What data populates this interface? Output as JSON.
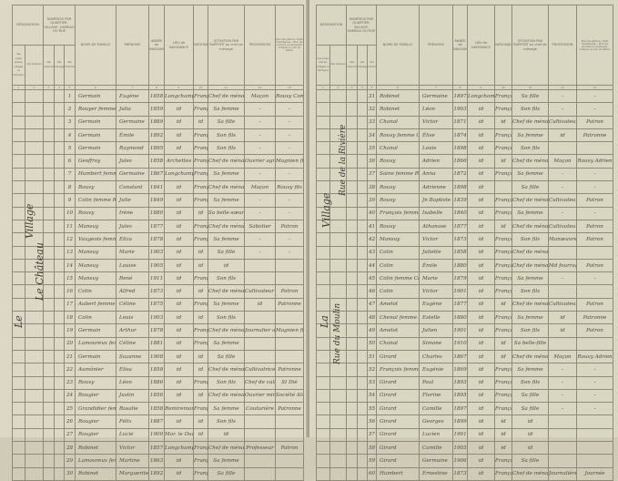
{
  "headers": {
    "designation": "DÉSIGNATION",
    "designation_sub1": "des voies, places, villages ou hameaux",
    "designation_sub2": "des maisons",
    "numeros": "NUMÉROS PAR QUARTIER, VILLAGE, HAMEAU OU RUE",
    "num_sub1": "des maisons",
    "num_sub2": "des ménages",
    "num_sub3": "des individus",
    "noms": "NOMS DE FAMILLE",
    "prenoms": "PRÉNOMS",
    "annee": "ANNÉE de NAISSANCE",
    "lieu": "LIEU de NAISSANCE",
    "nationalite": "NATIONALITÉ",
    "situation": "SITUATION PAR RAPPORT au chef de ménage",
    "profession": "PROFESSION",
    "patron": "Pour les patrons, chefs d'entreprise... Pour les ouvriers ou employés, indiquer le nom du patron"
  },
  "column_numbers": [
    "1",
    "2",
    "3",
    "4",
    "5",
    "6",
    "7",
    "8",
    "9",
    "10",
    "11",
    "12",
    "13"
  ],
  "margin_left": {
    "line1": "Village",
    "line2": "Le Château",
    "line3": "Le"
  },
  "margin_right": {
    "line1": "Village",
    "line2": "Rue de la Rivière",
    "line3": "Rue du Moulin",
    "line4": "La"
  },
  "left_rows": [
    [
      "1",
      "Germain",
      "Eugène",
      "1858",
      "Longchamp",
      "Français",
      "Chef de ménage",
      "Maçon",
      "Rouvy Const."
    ],
    [
      "2",
      "Rouyer femme Germain",
      "Julia",
      "1859",
      "id",
      "Française",
      "Sa femme",
      "-",
      "-"
    ],
    [
      "3",
      "Germain",
      "Germaine",
      "1889",
      "id",
      "id",
      "Sa fille",
      "-",
      "-"
    ],
    [
      "4",
      "Germain",
      "Émile",
      "1892",
      "id",
      "Français",
      "Son fils",
      "-",
      "-"
    ],
    [
      "5",
      "Germain",
      "Raymond",
      "1895",
      "id",
      "Français",
      "Son fils",
      "-",
      "-"
    ],
    [
      "6",
      "Geoffroy",
      "Jules",
      "1858",
      "Archettes",
      "Français",
      "Chef de ménage",
      "Ouvrier agricole",
      "Magnien fils"
    ],
    [
      "7",
      "Humbert femme Geoffroy",
      "Germaine",
      "1867",
      "Longchamp",
      "Française",
      "Sa femme",
      "-",
      "-"
    ],
    [
      "8",
      "Rouvy",
      "Constant",
      "1841",
      "id",
      "Français",
      "Chef de ménage",
      "Maçon",
      "Rouvy fils"
    ],
    [
      "9",
      "Colin femme Rouvy",
      "Julie",
      "1849",
      "id",
      "Française",
      "Sa femme",
      "-",
      "-"
    ],
    [
      "10",
      "Rouvy",
      "Irène",
      "1880",
      "id",
      "id",
      "Sa belle-sœur",
      "-",
      "-"
    ],
    [
      "11",
      "Mansuy",
      "Jules",
      "1877",
      "id",
      "Français",
      "Chef de ménage",
      "Sabotier",
      "Patron"
    ],
    [
      "12",
      "Vaugeois femme Mansuy",
      "Eliza",
      "1878",
      "id",
      "Française",
      "Sa femme",
      "-",
      "-"
    ],
    [
      "13",
      "Mansuy",
      "Marie",
      "1903",
      "id",
      "id",
      "Sa fille",
      "-",
      "-"
    ],
    [
      "14",
      "Mansuy",
      "Louise",
      "1905",
      "id",
      "id",
      "id",
      "",
      ""
    ],
    [
      "15",
      "Mansuy",
      "René",
      "1911",
      "id",
      "Français",
      "Son fils",
      "",
      ""
    ],
    [
      "16",
      "Colin",
      "Alfred",
      "1873",
      "id",
      "id",
      "Chef de ménage",
      "Cultivateur exploitant",
      "Patron"
    ],
    [
      "17",
      "Aubert femme Colin",
      "Céline",
      "1875",
      "id",
      "Française",
      "Sa femme",
      "id",
      "Patronne"
    ],
    [
      "18",
      "Colin",
      "Louis",
      "1903",
      "id",
      "id",
      "Son fils",
      "",
      ""
    ],
    [
      "19",
      "Germain",
      "Arthur",
      "1878",
      "id",
      "Français",
      "Chef de ménage",
      "Journalier agricole",
      "Magnien fils"
    ],
    [
      "20",
      "Lamoureux femme Germain",
      "Céline",
      "1881",
      "id",
      "Française",
      "Sa femme",
      "",
      ""
    ],
    [
      "21",
      "Germain",
      "Suzanne",
      "1908",
      "id",
      "id",
      "Sa fille",
      "",
      ""
    ],
    [
      "22",
      "Aumônier",
      "Elisa",
      "1858",
      "id",
      "id",
      "Chef de ménage",
      "Cultivatrice exploitante",
      "Patronne"
    ],
    [
      "23",
      "Rouvy",
      "Léon",
      "1886",
      "id",
      "Français",
      "Son fils",
      "Chef de culture",
      "St Dié"
    ],
    [
      "24",
      "Rougier",
      "Justin",
      "1856",
      "id",
      "id",
      "Chef de ménage",
      "Ouvrier mineur",
      "Société Alsa."
    ],
    [
      "25",
      "Grandidier femme Rougier",
      "Rosalie",
      "1858",
      "Remiremont",
      "Française",
      "Sa femme",
      "Couturière",
      "Patronne"
    ],
    [
      "26",
      "Rougier",
      "Félix",
      "1887",
      "id",
      "id",
      "Son fils",
      "",
      ""
    ],
    [
      "27",
      "Rougier",
      "Lucie",
      "1900",
      "Mar. le Duc",
      "id",
      "id",
      "",
      ""
    ],
    [
      "28",
      "Robinet",
      "Victor",
      "1857",
      "Longchamp",
      "Français",
      "Chef de ménage",
      "Professeur",
      "Patron"
    ],
    [
      "29",
      "Lamoureux femme Robinet",
      "Martine",
      "1863",
      "id",
      "Française",
      "Sa femme",
      "",
      ""
    ],
    [
      "30",
      "Robinet",
      "Marguerite",
      "1892",
      "id",
      "Française",
      "Sa fille",
      "",
      ""
    ]
  ],
  "right_rows": [
    [
      "31",
      "Robinet",
      "Germaine",
      "1897",
      "Longchamp",
      "Française",
      "Sa fille",
      "-",
      "-"
    ],
    [
      "32",
      "Robinet",
      "Léon",
      "1903",
      "id",
      "Français",
      "Son fils",
      "-",
      "-"
    ],
    [
      "33",
      "Chanal",
      "Victor",
      "1871",
      "id",
      "id",
      "Chef de ménage",
      "Cultivateur exploitant",
      "Patron"
    ],
    [
      "34",
      "Rouvy femme Chanal",
      "Élise",
      "1874",
      "id",
      "Française",
      "Sa femme",
      "id",
      "Patronne"
    ],
    [
      "35",
      "Chanal",
      "Louis",
      "1898",
      "id",
      "Français",
      "Son fils",
      "",
      ""
    ],
    [
      "36",
      "Rouvy",
      "Adrien",
      "1866",
      "id",
      "id",
      "Chef de ménage",
      "Maçon",
      "Rouvy Adrien"
    ],
    [
      "37",
      "Saine femme Rouvy",
      "Anna",
      "1872",
      "id",
      "Française",
      "Sa femme",
      "-",
      "-"
    ],
    [
      "38",
      "Rouvy",
      "Adrienne",
      "1898",
      "id",
      "",
      "Sa fille",
      "-",
      "-"
    ],
    [
      "39",
      "Rouvy",
      "Jn Baptiste",
      "1839",
      "id",
      "Française",
      "Chef de ménage",
      "Cultivateur exploitant",
      "Patron"
    ],
    [
      "40",
      "François femme Rouvy",
      "Isabelle",
      "1840",
      "id",
      "Française",
      "Sa femme",
      "-",
      "-"
    ],
    [
      "41",
      "Rouvy",
      "Athanase",
      "1877",
      "id",
      "id",
      "Chef de ménage",
      "Cultivateur exploitant",
      "Patron"
    ],
    [
      "42",
      "Mansuy",
      "Victor",
      "1873",
      "id",
      "Français",
      "Son fils",
      "Manœuvre",
      "Patron"
    ],
    [
      "43",
      "Colin",
      "Juliette",
      "1858",
      "id",
      "Française",
      "Chef de ménage",
      "",
      ""
    ],
    [
      "44",
      "Colin",
      "Émile",
      "1880",
      "id",
      "Français",
      "Chef de ménage",
      "Md fourrage",
      "Patron"
    ],
    [
      "45",
      "Colin femme Colin",
      "Marie",
      "1879",
      "id",
      "Française",
      "Sa femme",
      "-",
      "-"
    ],
    [
      "46",
      "Colin",
      "Victor",
      "1901",
      "id",
      "Français",
      "Son fils",
      "",
      ""
    ],
    [
      "47",
      "Amelot",
      "Eugène",
      "1877",
      "id",
      "id",
      "Chef de ménage",
      "Cultivateur exploitant",
      "Patron"
    ],
    [
      "48",
      "Chenal femme Amelot",
      "Estelle",
      "1880",
      "id",
      "Française",
      "Sa femme",
      "id",
      "Patronne"
    ],
    [
      "49",
      "Amelot",
      "Julien",
      "1901",
      "id",
      "Français",
      "Son fils",
      "id",
      "Patron"
    ],
    [
      "50",
      "Chanal",
      "Simone",
      "1910",
      "id",
      "id",
      "Sa belle-fille",
      "",
      ""
    ],
    [
      "51",
      "Girard",
      "Charles",
      "1867",
      "id",
      "id",
      "Chef de ménage",
      "Maçon",
      "Rouvy Adrien"
    ],
    [
      "52",
      "François femme Girard",
      "Eugénie",
      "1869",
      "id",
      "Française",
      "Sa femme",
      "-",
      "-"
    ],
    [
      "53",
      "Girard",
      "Paul",
      "1893",
      "id",
      "Français",
      "Son fils",
      "-",
      "-"
    ],
    [
      "54",
      "Girard",
      "Florine",
      "1895",
      "id",
      "Française",
      "Sa fille",
      "-",
      "-"
    ],
    [
      "55",
      "Girard",
      "Camille",
      "1897",
      "id",
      "Française",
      "Sa fille",
      "-",
      "-"
    ],
    [
      "56",
      "Girard",
      "Georges",
      "1899",
      "id",
      "id",
      "id",
      "",
      ""
    ],
    [
      "57",
      "Girard",
      "Lucien",
      "1901",
      "id",
      "id",
      "id",
      "",
      ""
    ],
    [
      "58",
      "Girard",
      "Camille",
      "1903",
      "id",
      "id",
      "id",
      "",
      ""
    ],
    [
      "59",
      "Girard",
      "Germaine",
      "1906",
      "id",
      "Française",
      "Sa fille",
      "",
      ""
    ],
    [
      "60",
      "Humbert",
      "Ernestine",
      "1873",
      "id",
      "Française",
      "Chef de ménage",
      "Journalière agricole",
      "Journée"
    ]
  ],
  "colors": {
    "paper": "#dcd8c5",
    "ink": "#4e493e",
    "rule": "#8f8a7a"
  }
}
